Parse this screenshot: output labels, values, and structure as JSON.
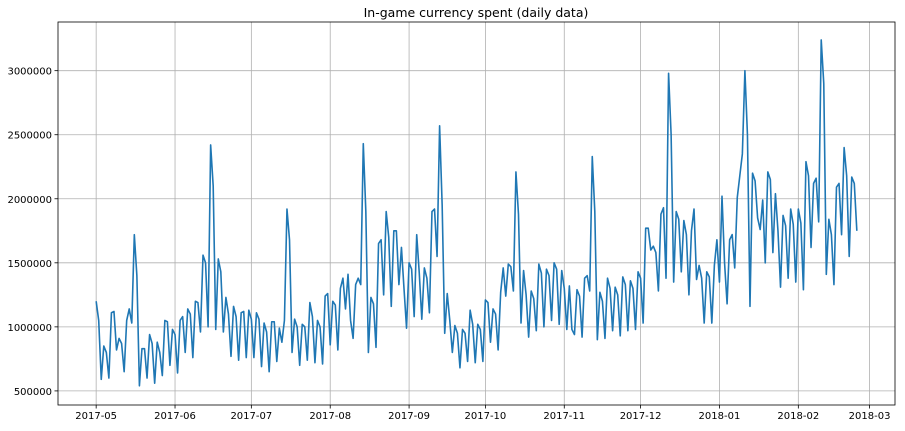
{
  "chart_data": {
    "type": "line",
    "title": "In-game currency spent (daily data)",
    "xlabel": "",
    "ylabel": "",
    "x_start": "2017-05-01",
    "x_frequency": "daily",
    "xlim": [
      "2017-04-16",
      "2018-03-11"
    ],
    "ylim": [
      390000,
      3380000
    ],
    "grid": true,
    "line_color": "#1f77b4",
    "x_ticks": [
      "2017-05",
      "2017-06",
      "2017-07",
      "2017-08",
      "2017-09",
      "2017-10",
      "2017-11",
      "2017-12",
      "2018-01",
      "2018-02",
      "2018-03"
    ],
    "x_tick_dates": [
      "2017-05-01",
      "2017-06-01",
      "2017-07-01",
      "2017-08-01",
      "2017-09-01",
      "2017-10-01",
      "2017-11-01",
      "2017-12-01",
      "2018-01-01",
      "2018-02-01",
      "2018-03-01"
    ],
    "y_ticks": [
      "500000",
      "1000000",
      "1500000",
      "2000000",
      "2500000",
      "3000000"
    ],
    "values": [
      1200000,
      1050000,
      590000,
      850000,
      800000,
      600000,
      1110000,
      1120000,
      820000,
      910000,
      870000,
      650000,
      1050000,
      1140000,
      1030000,
      1720000,
      1400000,
      540000,
      830000,
      830000,
      600000,
      940000,
      870000,
      560000,
      880000,
      800000,
      620000,
      1050000,
      1040000,
      700000,
      980000,
      940000,
      640000,
      1050000,
      1080000,
      800000,
      1140000,
      1100000,
      760000,
      1200000,
      1190000,
      960000,
      1560000,
      1500000,
      1000000,
      2420000,
      2100000,
      980000,
      1530000,
      1430000,
      960000,
      1230000,
      1100000,
      770000,
      1160000,
      1080000,
      740000,
      1110000,
      1120000,
      760000,
      1130000,
      1060000,
      760000,
      1110000,
      1060000,
      690000,
      1030000,
      960000,
      650000,
      1040000,
      1040000,
      730000,
      990000,
      880000,
      1050000,
      1920000,
      1680000,
      800000,
      1060000,
      1000000,
      700000,
      1020000,
      1000000,
      740000,
      1190000,
      1080000,
      720000,
      1050000,
      1000000,
      710000,
      1240000,
      1260000,
      860000,
      1200000,
      1170000,
      820000,
      1300000,
      1380000,
      1140000,
      1410000,
      1050000,
      910000,
      1330000,
      1380000,
      1330000,
      2430000,
      1900000,
      800000,
      1230000,
      1180000,
      840000,
      1650000,
      1680000,
      1250000,
      1900000,
      1700000,
      1160000,
      1750000,
      1750000,
      1330000,
      1620000,
      1300000,
      990000,
      1500000,
      1450000,
      1080000,
      1720000,
      1420000,
      1060000,
      1460000,
      1380000,
      1110000,
      1900000,
      1920000,
      1550000,
      2570000,
      1950000,
      950000,
      1260000,
      1050000,
      800000,
      1010000,
      950000,
      680000,
      980000,
      950000,
      730000,
      1130000,
      1020000,
      720000,
      1020000,
      980000,
      730000,
      1210000,
      1190000,
      880000,
      1140000,
      1100000,
      820000,
      1270000,
      1460000,
      1240000,
      1490000,
      1470000,
      1280000,
      2210000,
      1880000,
      1030000,
      1440000,
      1250000,
      920000,
      1280000,
      1220000,
      970000,
      1490000,
      1420000,
      1000000,
      1450000,
      1400000,
      1050000,
      1500000,
      1450000,
      1020000,
      1440000,
      1300000,
      980000,
      1320000,
      980000,
      940000,
      1290000,
      1240000,
      920000,
      1380000,
      1400000,
      1280000,
      2330000,
      1900000,
      900000,
      1270000,
      1200000,
      910000,
      1380000,
      1300000,
      970000,
      1310000,
      1250000,
      930000,
      1390000,
      1330000,
      970000,
      1360000,
      1300000,
      980000,
      1430000,
      1380000,
      1030000,
      1770000,
      1770000,
      1600000,
      1630000,
      1580000,
      1280000,
      1880000,
      1930000,
      1380000,
      2980000,
      2500000,
      1350000,
      1900000,
      1840000,
      1430000,
      1830000,
      1720000,
      1250000,
      1750000,
      1920000,
      1370000,
      1480000,
      1380000,
      1030000,
      1430000,
      1390000,
      1030000,
      1480000,
      1680000,
      1350000,
      2020000,
      1500000,
      1180000,
      1680000,
      1720000,
      1460000,
      2010000,
      2180000,
      2350000,
      3000000,
      2500000,
      1160000,
      2200000,
      2140000,
      1850000,
      1760000,
      1990000,
      1500000,
      2210000,
      2150000,
      1580000,
      2040000,
      1750000,
      1310000,
      1870000,
      1790000,
      1380000,
      1920000,
      1800000,
      1350000,
      1920000,
      1810000,
      1290000,
      2290000,
      2180000,
      1620000,
      2120000,
      2160000,
      1820000,
      3240000,
      2900000,
      1410000,
      1840000,
      1720000,
      1330000,
      2090000,
      2120000,
      1720000,
      2400000,
      2180000,
      1550000,
      2170000,
      2120000,
      1750000
    ]
  }
}
